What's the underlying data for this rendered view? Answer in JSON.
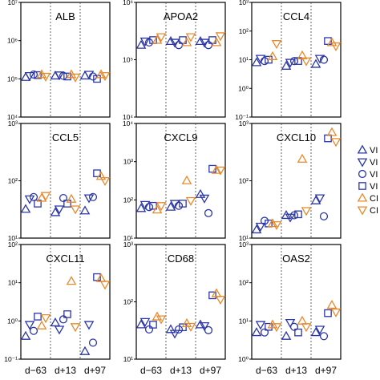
{
  "chart_data": {
    "type": "scatter",
    "timepoints": [
      "d−63",
      "d+13",
      "d+97"
    ],
    "series": [
      {
        "name": "VI",
        "marker": "triangle-up",
        "color": "#2b36a8"
      },
      {
        "name": "VI",
        "marker": "triangle-down",
        "color": "#2b36a8"
      },
      {
        "name": "VI",
        "marker": "circle",
        "color": "#2b36a8"
      },
      {
        "name": "VI",
        "marker": "square",
        "color": "#2b36a8"
      },
      {
        "name": "CI",
        "marker": "triangle-up",
        "color": "#e8892c"
      },
      {
        "name": "CI",
        "marker": "triangle-down",
        "color": "#e8892c"
      }
    ],
    "panels": [
      {
        "title": "ALB",
        "ylim": [
          10000,
          10000000
        ],
        "yticks": [
          {
            "v": 10000,
            "label": "10⁴"
          },
          {
            "v": 100000,
            "label": "10⁵"
          },
          {
            "v": 1000000,
            "label": "10⁶"
          },
          {
            "v": 10000000,
            "label": "10⁷"
          }
        ],
        "points": [
          [
            0,
            0,
            110000
          ],
          [
            0,
            1,
            120000
          ],
          [
            0,
            2,
            130000
          ],
          [
            0,
            3,
            125000
          ],
          [
            0,
            4,
            130000
          ],
          [
            0,
            5,
            115000
          ],
          [
            1,
            0,
            120000
          ],
          [
            1,
            1,
            125000
          ],
          [
            1,
            2,
            120000
          ],
          [
            1,
            3,
            115000
          ],
          [
            1,
            4,
            130000
          ],
          [
            1,
            5,
            110000
          ],
          [
            2,
            0,
            120000
          ],
          [
            2,
            1,
            130000
          ],
          [
            2,
            2,
            115000
          ],
          [
            2,
            3,
            100000
          ],
          [
            2,
            4,
            130000
          ],
          [
            2,
            5,
            120000
          ]
        ]
      },
      {
        "title": "APOA2",
        "ylim": [
          10000,
          1000000
        ],
        "yticks": [
          {
            "v": 10000,
            "label": "10⁴"
          },
          {
            "v": 100000,
            "label": "10⁵"
          },
          {
            "v": 1000000,
            "label": "10⁶"
          }
        ],
        "points": [
          [
            0,
            0,
            180000
          ],
          [
            0,
            1,
            210000
          ],
          [
            0,
            2,
            200000
          ],
          [
            0,
            3,
            220000
          ],
          [
            0,
            4,
            220000
          ],
          [
            0,
            5,
            250000
          ],
          [
            1,
            0,
            210000
          ],
          [
            1,
            1,
            200000
          ],
          [
            1,
            2,
            180000
          ],
          [
            1,
            3,
            220000
          ],
          [
            1,
            4,
            200000
          ],
          [
            1,
            5,
            250000
          ],
          [
            2,
            0,
            210000
          ],
          [
            2,
            1,
            200000
          ],
          [
            2,
            2,
            180000
          ],
          [
            2,
            3,
            220000
          ],
          [
            2,
            4,
            200000
          ],
          [
            2,
            5,
            260000
          ]
        ]
      },
      {
        "title": "CCL4",
        "ylim": [
          0.1,
          1000
        ],
        "yticks": [
          {
            "v": 0.1,
            "label": "10⁻¹"
          },
          {
            "v": 1,
            "label": "10⁰"
          },
          {
            "v": 10,
            "label": "10¹"
          },
          {
            "v": 100,
            "label": "10²"
          },
          {
            "v": 1000,
            "label": "10³"
          }
        ],
        "points": [
          [
            0,
            0,
            8
          ],
          [
            0,
            1,
            11
          ],
          [
            0,
            2,
            9
          ],
          [
            0,
            3,
            10
          ],
          [
            0,
            4,
            13
          ],
          [
            0,
            5,
            36
          ],
          [
            1,
            0,
            6
          ],
          [
            1,
            1,
            8
          ],
          [
            1,
            2,
            9
          ],
          [
            1,
            3,
            9
          ],
          [
            1,
            4,
            14
          ],
          [
            1,
            5,
            9
          ],
          [
            2,
            0,
            7
          ],
          [
            2,
            1,
            11
          ],
          [
            2,
            2,
            10
          ],
          [
            2,
            3,
            45
          ],
          [
            2,
            4,
            40
          ],
          [
            2,
            5,
            30
          ]
        ]
      },
      {
        "title": "CCL5",
        "ylim": [
          10,
          1000
        ],
        "yticks": [
          {
            "v": 10,
            "label": "10¹"
          },
          {
            "v": 100,
            "label": "10²"
          },
          {
            "v": 1000,
            "label": "10³"
          }
        ],
        "points": [
          [
            0,
            0,
            32
          ],
          [
            0,
            1,
            48
          ],
          [
            0,
            2,
            52
          ],
          [
            0,
            3,
            40
          ],
          [
            0,
            4,
            50
          ],
          [
            0,
            5,
            55
          ],
          [
            1,
            0,
            28
          ],
          [
            1,
            1,
            32
          ],
          [
            1,
            2,
            50
          ],
          [
            1,
            3,
            40
          ],
          [
            1,
            4,
            48
          ],
          [
            1,
            5,
            32
          ],
          [
            2,
            0,
            30
          ],
          [
            2,
            1,
            50
          ],
          [
            2,
            2,
            52
          ],
          [
            2,
            3,
            135
          ],
          [
            2,
            4,
            120
          ],
          [
            2,
            5,
            100
          ]
        ]
      },
      {
        "title": "CXCL9",
        "ylim": [
          10,
          10000
        ],
        "yticks": [
          {
            "v": 10,
            "label": "10¹"
          },
          {
            "v": 100,
            "label": "10²"
          },
          {
            "v": 1000,
            "label": "10³"
          },
          {
            "v": 10000,
            "label": "10⁴"
          }
        ],
        "points": [
          [
            0,
            0,
            60
          ],
          [
            0,
            1,
            75
          ],
          [
            0,
            2,
            65
          ],
          [
            0,
            3,
            70
          ],
          [
            0,
            4,
            55
          ],
          [
            0,
            5,
            70
          ],
          [
            1,
            0,
            65
          ],
          [
            1,
            1,
            80
          ],
          [
            1,
            2,
            70
          ],
          [
            1,
            3,
            80
          ],
          [
            1,
            4,
            320
          ],
          [
            1,
            5,
            95
          ],
          [
            2,
            0,
            140
          ],
          [
            2,
            1,
            110
          ],
          [
            2,
            2,
            45
          ],
          [
            2,
            3,
            650
          ],
          [
            2,
            4,
            600
          ],
          [
            2,
            5,
            600
          ]
        ]
      },
      {
        "title": "CXCL10",
        "ylim": [
          10,
          1000
        ],
        "yticks": [
          {
            "v": 10,
            "label": "10¹"
          },
          {
            "v": 100,
            "label": "10²"
          },
          {
            "v": 1000,
            "label": "10³"
          }
        ],
        "points": [
          [
            0,
            0,
            14
          ],
          [
            0,
            1,
            16
          ],
          [
            0,
            2,
            20
          ],
          [
            0,
            3,
            18
          ],
          [
            0,
            4,
            18
          ],
          [
            0,
            5,
            17
          ],
          [
            1,
            0,
            25
          ],
          [
            1,
            1,
            23
          ],
          [
            1,
            2,
            25
          ],
          [
            1,
            3,
            26
          ],
          [
            1,
            4,
            240
          ],
          [
            1,
            5,
            30
          ],
          [
            2,
            0,
            45
          ],
          [
            2,
            1,
            50
          ],
          [
            2,
            2,
            24
          ],
          [
            2,
            3,
            550
          ],
          [
            2,
            4,
            700
          ],
          [
            2,
            5,
            480
          ]
        ]
      },
      {
        "title": "CXCL11",
        "ylim": [
          0.1,
          100
        ],
        "yticks": [
          {
            "v": 0.1,
            "label": "10⁻¹"
          },
          {
            "v": 1,
            "label": "10⁰"
          },
          {
            "v": 10,
            "label": "10¹"
          },
          {
            "v": 100,
            "label": "10²"
          }
        ],
        "points": [
          [
            0,
            0,
            0.4
          ],
          [
            0,
            1,
            0.8
          ],
          [
            0,
            2,
            0.55
          ],
          [
            0,
            3,
            1.3
          ],
          [
            0,
            4,
            0.75
          ],
          [
            0,
            5,
            1.2
          ],
          [
            1,
            0,
            0.9
          ],
          [
            1,
            1,
            0.6
          ],
          [
            1,
            2,
            1.1
          ],
          [
            1,
            3,
            1.5
          ],
          [
            1,
            4,
            11
          ],
          [
            1,
            5,
            0.7
          ],
          [
            2,
            0,
            0.16
          ],
          [
            2,
            1,
            0.8
          ],
          [
            2,
            2,
            0.27
          ],
          [
            2,
            3,
            14
          ],
          [
            2,
            4,
            13
          ],
          [
            2,
            5,
            9
          ]
        ]
      },
      {
        "title": "CD68",
        "ylim": [
          10,
          1000
        ],
        "yticks": [
          {
            "v": 10,
            "label": "10¹"
          },
          {
            "v": 100,
            "label": "10²"
          },
          {
            "v": 1000,
            "label": "10³"
          }
        ],
        "points": [
          [
            0,
            0,
            40
          ],
          [
            0,
            1,
            45
          ],
          [
            0,
            2,
            33
          ],
          [
            0,
            3,
            40
          ],
          [
            0,
            4,
            55
          ],
          [
            0,
            5,
            50
          ],
          [
            1,
            0,
            33
          ],
          [
            1,
            1,
            28
          ],
          [
            1,
            2,
            33
          ],
          [
            1,
            3,
            36
          ],
          [
            1,
            4,
            42
          ],
          [
            1,
            5,
            37
          ],
          [
            2,
            0,
            40
          ],
          [
            2,
            1,
            38
          ],
          [
            2,
            2,
            32
          ],
          [
            2,
            3,
            130
          ],
          [
            2,
            4,
            140
          ],
          [
            2,
            5,
            110
          ]
        ]
      },
      {
        "title": "OAS2",
        "ylim": [
          1,
          1000
        ],
        "yticks": [
          {
            "v": 1,
            "label": "10⁰"
          },
          {
            "v": 10,
            "label": "10¹"
          },
          {
            "v": 100,
            "label": "10²"
          },
          {
            "v": 1000,
            "label": "10³"
          }
        ],
        "points": [
          [
            0,
            0,
            5
          ],
          [
            0,
            1,
            8
          ],
          [
            0,
            2,
            5
          ],
          [
            0,
            3,
            7
          ],
          [
            0,
            4,
            8
          ],
          [
            0,
            5,
            7
          ],
          [
            1,
            0,
            4
          ],
          [
            1,
            1,
            9
          ],
          [
            1,
            2,
            7
          ],
          [
            1,
            3,
            5
          ],
          [
            1,
            4,
            10
          ],
          [
            1,
            5,
            7
          ],
          [
            2,
            0,
            5
          ],
          [
            2,
            1,
            6
          ],
          [
            2,
            2,
            4
          ],
          [
            2,
            3,
            16
          ],
          [
            2,
            4,
            26
          ],
          [
            2,
            5,
            17
          ]
        ]
      }
    ]
  }
}
